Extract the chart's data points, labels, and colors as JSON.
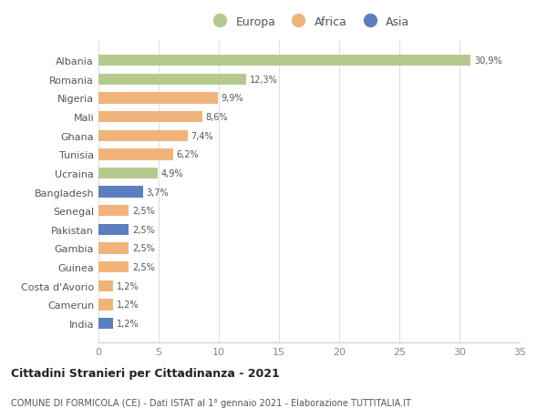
{
  "countries": [
    "Albania",
    "Romania",
    "Nigeria",
    "Mali",
    "Ghana",
    "Tunisia",
    "Ucraina",
    "Bangladesh",
    "Senegal",
    "Pakistan",
    "Gambia",
    "Guinea",
    "Costa d'Avorio",
    "Camerun",
    "India"
  ],
  "values": [
    30.9,
    12.3,
    9.9,
    8.6,
    7.4,
    6.2,
    4.9,
    3.7,
    2.5,
    2.5,
    2.5,
    2.5,
    1.2,
    1.2,
    1.2
  ],
  "labels": [
    "30,9%",
    "12,3%",
    "9,9%",
    "8,6%",
    "7,4%",
    "6,2%",
    "4,9%",
    "3,7%",
    "2,5%",
    "2,5%",
    "2,5%",
    "2,5%",
    "1,2%",
    "1,2%",
    "1,2%"
  ],
  "continents": [
    "Europa",
    "Europa",
    "Africa",
    "Africa",
    "Africa",
    "Africa",
    "Europa",
    "Asia",
    "Africa",
    "Asia",
    "Africa",
    "Africa",
    "Africa",
    "Africa",
    "Asia"
  ],
  "colors": {
    "Europa": "#b5c98e",
    "Africa": "#f0b47a",
    "Asia": "#5b7fc1"
  },
  "legend_labels": [
    "Europa",
    "Africa",
    "Asia"
  ],
  "title1": "Cittadini Stranieri per Cittadinanza - 2021",
  "title2": "COMUNE DI FORMICOLA (CE) - Dati ISTAT al 1° gennaio 2021 - Elaborazione TUTTITALIA.IT",
  "xlim": [
    0,
    35
  ],
  "xticks": [
    0,
    5,
    10,
    15,
    20,
    25,
    30,
    35
  ],
  "bg_color": "#ffffff",
  "grid_color": "#e0e0e0"
}
